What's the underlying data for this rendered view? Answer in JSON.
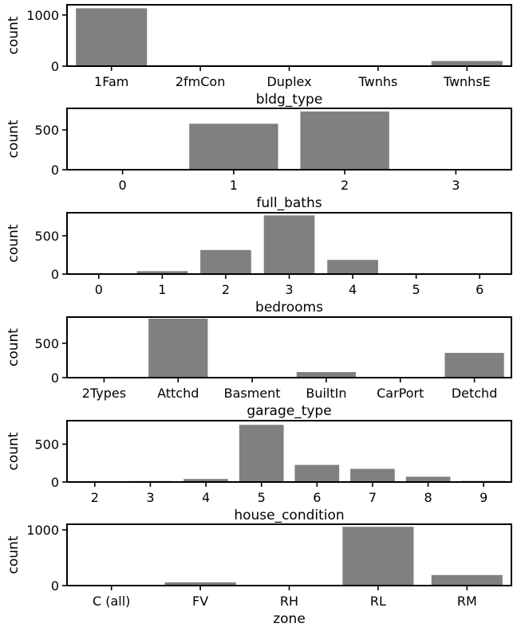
{
  "colors": {
    "bar": "#808080",
    "axis": "#000000"
  },
  "chart_data": [
    {
      "type": "bar",
      "xlabel": "bldg_type",
      "ylabel": "count",
      "categories": [
        "1Fam",
        "2fmCon",
        "Duplex",
        "Twnhs",
        "TwnhsE"
      ],
      "values": [
        1131,
        2,
        14,
        14,
        101
      ],
      "ylim": [
        0,
        1200
      ],
      "yticks": [
        0,
        1000
      ]
    },
    {
      "type": "bar",
      "xlabel": "full_baths",
      "ylabel": "count",
      "categories": [
        "0",
        "1",
        "2",
        "3"
      ],
      "values": [
        2,
        577,
        731,
        10
      ],
      "ylim": [
        0,
        770
      ],
      "yticks": [
        0,
        500
      ]
    },
    {
      "type": "bar",
      "xlabel": "bedrooms",
      "ylabel": "count",
      "categories": [
        "0",
        "1",
        "2",
        "3",
        "4",
        "5",
        "6"
      ],
      "values": [
        1,
        38,
        314,
        765,
        185,
        9,
        1
      ],
      "ylim": [
        0,
        800
      ],
      "yticks": [
        0,
        500
      ]
    },
    {
      "type": "bar",
      "xlabel": "garage_type",
      "ylabel": "count",
      "categories": [
        "2Types",
        "Attchd",
        "Basment",
        "BuiltIn",
        "CarPort",
        "Detchd"
      ],
      "values": [
        3,
        857,
        4,
        81,
        2,
        360
      ],
      "ylim": [
        0,
        880
      ],
      "yticks": [
        0,
        500
      ]
    },
    {
      "type": "bar",
      "xlabel": "house_condition",
      "ylabel": "count",
      "categories": [
        "2",
        "3",
        "4",
        "5",
        "6",
        "7",
        "8",
        "9"
      ],
      "values": [
        2,
        13,
        40,
        755,
        226,
        174,
        70,
        15
      ],
      "ylim": [
        0,
        810
      ],
      "yticks": [
        0,
        500
      ]
    },
    {
      "type": "bar",
      "xlabel": "zone",
      "ylabel": "count",
      "categories": [
        "C (all)",
        "FV",
        "RH",
        "RL",
        "RM"
      ],
      "values": [
        3,
        59,
        4,
        1054,
        189
      ],
      "ylim": [
        0,
        1100
      ],
      "yticks": [
        0,
        1000
      ]
    }
  ]
}
